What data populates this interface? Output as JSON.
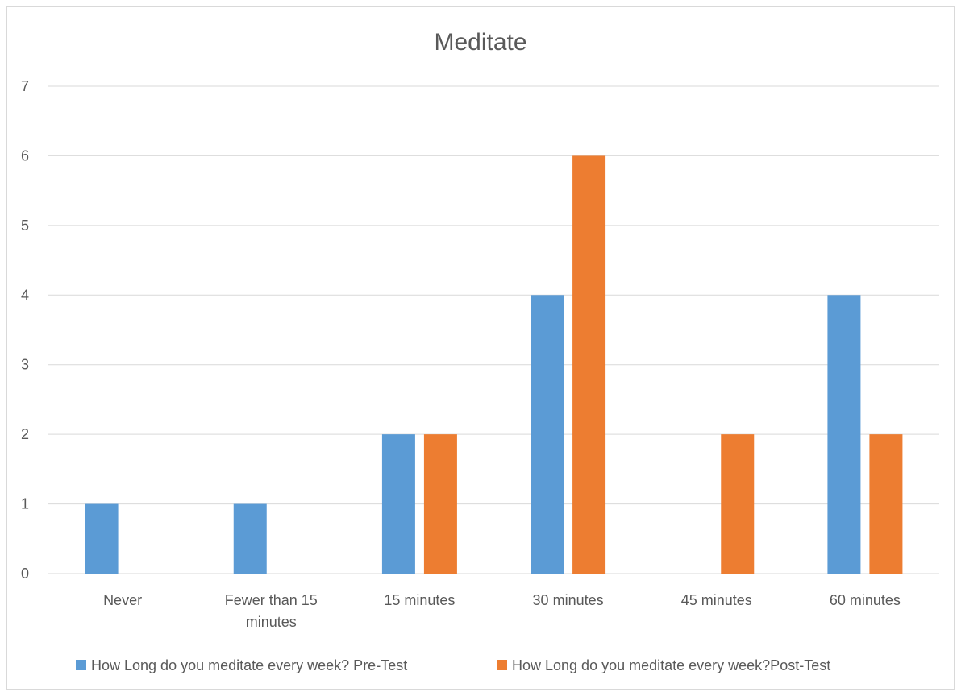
{
  "chart_data": {
    "type": "bar",
    "title": "Meditate",
    "xlabel": "",
    "ylabel": "",
    "ylim": [
      0,
      7
    ],
    "yticks": [
      "0",
      "1",
      "2",
      "3",
      "4",
      "5",
      "6",
      "7"
    ],
    "grid": true,
    "legend_position": "bottom",
    "categories": [
      [
        "Never"
      ],
      [
        "Fewer than 15",
        "minutes"
      ],
      [
        "15 minutes"
      ],
      [
        "30 minutes"
      ],
      [
        "45 minutes"
      ],
      [
        "60 minutes"
      ]
    ],
    "series": [
      {
        "name": "How Long do you meditate every week? Pre-Test",
        "color": "#5b9bd5",
        "values": [
          1,
          1,
          2,
          4,
          0,
          4
        ]
      },
      {
        "name": "How Long do you meditate every week?Post-Test",
        "color": "#ed7d31",
        "values": [
          0,
          0,
          2,
          6,
          2,
          2
        ]
      }
    ]
  }
}
